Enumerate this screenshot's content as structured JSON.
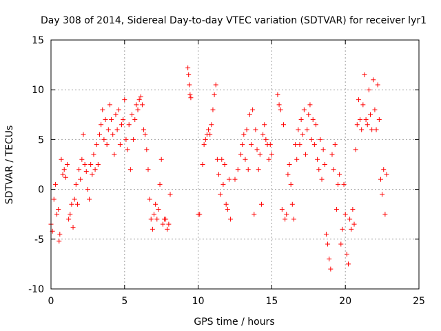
{
  "chart_data": {
    "type": "scatter",
    "title": "Day 308 of 2014, Sidereal Day-to-day VTEC variation (SDTVAR) for receiver lyr1",
    "xlabel": "GPS time / hours",
    "ylabel": "SDTVAR / TECUs",
    "xlim": [
      0,
      25
    ],
    "ylim": [
      -10,
      15
    ],
    "xticks": [
      0,
      5,
      10,
      15,
      20,
      25
    ],
    "yticks": [
      -10,
      -5,
      0,
      5,
      10,
      15
    ],
    "grid": true,
    "marker": "plus",
    "series_color": "#ff0000",
    "segments": [
      {
        "x": [
          0.0,
          0.1,
          0.2,
          0.3,
          0.4,
          0.5,
          0.55,
          0.6,
          0.7,
          0.8,
          0.9,
          1.0,
          1.1,
          1.2,
          1.3,
          1.4,
          1.5
        ],
        "y": [
          -3.5,
          -4.2,
          -1.0,
          0.5,
          -2.5,
          -2.0,
          -5.2,
          -4.5,
          3.0,
          1.5,
          2.0,
          1.2,
          2.5,
          -3.0,
          -2.5,
          -1.5,
          -3.8
        ]
      },
      {
        "x": [
          1.6,
          1.7,
          1.8,
          1.9,
          2.0,
          2.1,
          2.2,
          2.3,
          2.4,
          2.5,
          2.6,
          2.7,
          2.8,
          2.9,
          3.0,
          3.1,
          3.2
        ],
        "y": [
          -1.0,
          0.5,
          -1.5,
          2.0,
          1.0,
          3.0,
          5.5,
          2.5,
          1.8,
          0.0,
          -1.0,
          2.5,
          1.5,
          3.5,
          2.0,
          4.5,
          2.5
        ]
      },
      {
        "x": [
          3.3,
          3.4,
          3.5,
          3.6,
          3.7,
          3.8,
          3.9,
          4.0,
          4.1,
          4.2,
          4.3,
          4.4,
          4.5,
          4.6,
          4.7,
          4.8,
          4.9,
          5.0
        ],
        "y": [
          5.5,
          6.5,
          8.0,
          5.0,
          7.0,
          4.5,
          6.0,
          8.5,
          7.0,
          5.5,
          3.5,
          7.5,
          6.0,
          8.0,
          4.5,
          6.5,
          7.0,
          9.0
        ]
      },
      {
        "x": [
          5.1,
          5.2,
          5.3,
          5.4,
          5.5,
          5.6,
          5.7,
          5.8,
          5.9,
          6.0,
          6.1,
          6.2,
          6.3,
          6.4,
          6.5,
          6.6,
          6.7,
          6.8,
          6.9
        ],
        "y": [
          5.0,
          4.0,
          6.5,
          2.0,
          7.5,
          5.0,
          7.0,
          8.5,
          8.0,
          9.0,
          9.3,
          8.5,
          6.0,
          5.5,
          4.0,
          2.0,
          -1.0,
          -3.0,
          -4.0
        ]
      },
      {
        "x": [
          7.0,
          7.1,
          7.2,
          7.3,
          7.4,
          7.5,
          7.6,
          7.7,
          7.8,
          7.9,
          8.0,
          8.1
        ],
        "y": [
          -2.5,
          -1.5,
          -3.0,
          -2.0,
          0.5,
          3.0,
          -3.5,
          -3.0,
          -3.0,
          -4.0,
          -3.5,
          -0.5
        ]
      },
      {
        "x": [
          9.3,
          9.35,
          9.4,
          9.45,
          9.5
        ],
        "y": [
          12.2,
          11.5,
          10.5,
          9.5,
          9.2
        ]
      },
      {
        "x": [
          10.0,
          10.1,
          10.3,
          10.4,
          10.5,
          10.6,
          10.7,
          10.8,
          10.9,
          11.0,
          11.1,
          11.2,
          11.3,
          11.4,
          11.5
        ],
        "y": [
          -2.5,
          -2.5,
          2.5,
          4.5,
          5.0,
          5.5,
          6.0,
          5.5,
          6.5,
          8.0,
          9.5,
          10.5,
          3.0,
          1.5,
          -0.5
        ]
      },
      {
        "x": [
          11.6,
          11.7,
          11.8,
          11.9,
          12.0,
          12.1,
          12.2,
          12.5,
          12.7,
          12.9,
          13.0,
          13.1,
          13.2,
          13.3,
          13.4
        ],
        "y": [
          3.0,
          0.5,
          2.5,
          -1.5,
          -2.0,
          1.0,
          -3.0,
          1.0,
          2.0,
          3.5,
          4.5,
          5.5,
          3.0,
          6.0,
          2.0
        ]
      },
      {
        "x": [
          13.5,
          13.6,
          13.7,
          13.8,
          13.9,
          14.0,
          14.1,
          14.2,
          14.3,
          14.4,
          14.5,
          14.6,
          14.7,
          14.8,
          14.9,
          15.0
        ],
        "y": [
          7.5,
          4.5,
          8.0,
          -2.5,
          6.0,
          4.0,
          2.0,
          3.5,
          -1.5,
          5.5,
          6.5,
          5.0,
          4.5,
          3.0,
          4.5,
          3.5
        ]
      },
      {
        "x": [
          15.4,
          15.5,
          15.6,
          15.7,
          15.8,
          15.9,
          16.0,
          16.1,
          16.2,
          16.3,
          16.4,
          16.5,
          16.6,
          16.7,
          16.8,
          16.9,
          17.0
        ],
        "y": [
          9.5,
          8.5,
          8.0,
          -2.0,
          6.5,
          -3.0,
          -2.5,
          1.5,
          2.5,
          0.5,
          -1.5,
          -3.0,
          4.5,
          3.0,
          6.0,
          4.5,
          7.0
        ]
      },
      {
        "x": [
          17.1,
          17.2,
          17.3,
          17.4,
          17.5,
          17.6,
          17.7,
          17.8,
          17.9,
          18.0,
          18.1,
          18.2,
          18.3,
          18.4,
          18.5,
          18.6,
          18.7,
          18.8
        ],
        "y": [
          5.5,
          8.0,
          3.5,
          6.0,
          7.5,
          8.5,
          5.0,
          7.0,
          4.5,
          6.5,
          3.0,
          2.0,
          5.0,
          1.0,
          4.0,
          2.5,
          -4.5,
          -5.5
        ]
      },
      {
        "x": [
          18.9,
          19.0,
          19.1,
          19.2,
          19.3,
          19.4,
          19.5,
          19.6,
          19.7,
          19.8,
          19.9,
          20.0,
          20.1,
          20.2,
          20.3,
          20.4,
          20.5,
          20.6
        ],
        "y": [
          -7.0,
          -8.0,
          3.5,
          2.0,
          4.5,
          -2.0,
          0.5,
          1.5,
          -5.5,
          -4.0,
          0.5,
          -2.5,
          -6.5,
          -7.5,
          -3.0,
          -4.0,
          -2.0,
          -3.5
        ]
      },
      {
        "x": [
          20.7,
          20.8,
          20.9,
          21.0,
          21.1,
          21.2,
          21.3,
          21.4,
          21.5,
          21.6,
          21.7,
          21.8,
          21.9,
          22.0,
          22.1,
          22.2,
          22.3
        ],
        "y": [
          4.0,
          6.5,
          9.0,
          7.0,
          6.0,
          8.5,
          11.5,
          7.0,
          6.5,
          10.0,
          7.5,
          6.0,
          11.0,
          8.0,
          6.0,
          10.5,
          7.0
        ]
      },
      {
        "x": [
          22.4,
          22.5,
          22.6,
          22.7,
          22.8
        ],
        "y": [
          1.0,
          -0.5,
          2.0,
          -2.5,
          1.5
        ]
      }
    ]
  }
}
